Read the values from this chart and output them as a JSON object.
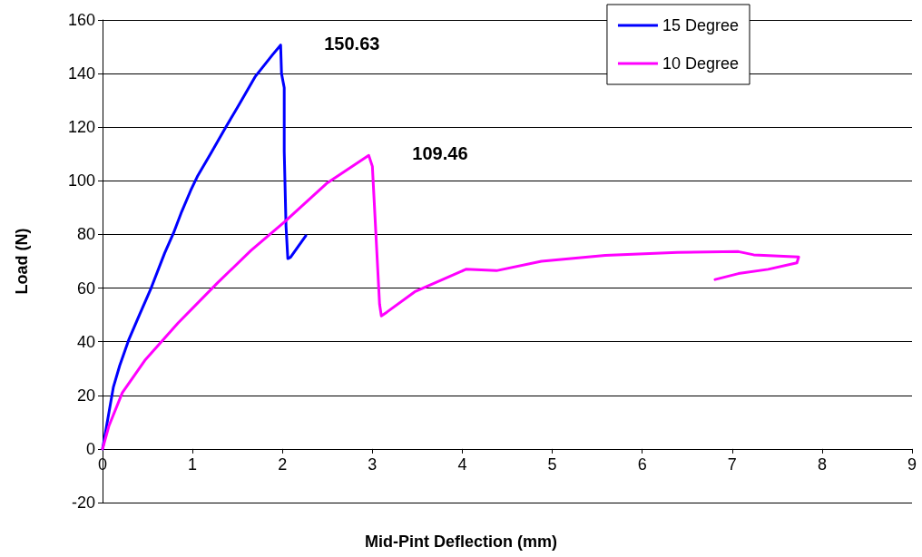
{
  "chart_data": {
    "type": "line",
    "xlabel": "Mid-Pint Deflection (mm)",
    "ylabel": "Load (N)",
    "xlim": [
      0,
      9
    ],
    "xticks": [
      0,
      1,
      2,
      3,
      4,
      5,
      6,
      7,
      8,
      9
    ],
    "ylim": [
      -20,
      160
    ],
    "yticks": [
      -20,
      0,
      20,
      40,
      60,
      80,
      100,
      120,
      140,
      160
    ],
    "grid": "y",
    "legend": "top right",
    "marker": "none",
    "line_style": "solid",
    "series": [
      {
        "name": "15 Degree",
        "color": "#0000ff",
        "x": [
          0,
          0.12,
          0.19,
          0.29,
          0.41,
          0.54,
          0.69,
          0.79,
          0.88,
          0.98,
          1.06,
          1.2,
          1.37,
          1.52,
          1.7,
          1.89,
          1.98,
          1.99,
          2.02,
          2.02,
          2.04,
          2.06,
          2.09,
          2.26
        ],
        "values": [
          0,
          23,
          31,
          40.6,
          50,
          60,
          73,
          80.6,
          88.5,
          96.4,
          102,
          110,
          120,
          128.5,
          139,
          147,
          150.63,
          140,
          134.7,
          111,
          83,
          71,
          71.5,
          79.5
        ]
      },
      {
        "name": "10 Degree",
        "color": "#ff00ff",
        "x": [
          0,
          0.07,
          0.22,
          0.47,
          0.84,
          1.28,
          1.65,
          2.02,
          2.49,
          2.96,
          3.0,
          3.08,
          3.1,
          3.16,
          3.47,
          4.04,
          4.38,
          4.88,
          5.59,
          6.39,
          7.07,
          7.24,
          7.74,
          7.72,
          7.4,
          7.07,
          6.81
        ],
        "values": [
          0,
          8.5,
          21,
          33,
          47,
          62,
          74,
          84.6,
          99,
          109.46,
          105.4,
          54,
          49.6,
          51,
          58.6,
          67,
          66.5,
          70,
          72.2,
          73.3,
          73.6,
          72.4,
          71.6,
          69.4,
          67,
          65.4,
          63.2
        ]
      }
    ],
    "annotations": [
      {
        "text": "150.63",
        "x": 1.98,
        "y": 150.63
      },
      {
        "text": "109.46",
        "x": 2.96,
        "y": 109.46
      }
    ]
  }
}
